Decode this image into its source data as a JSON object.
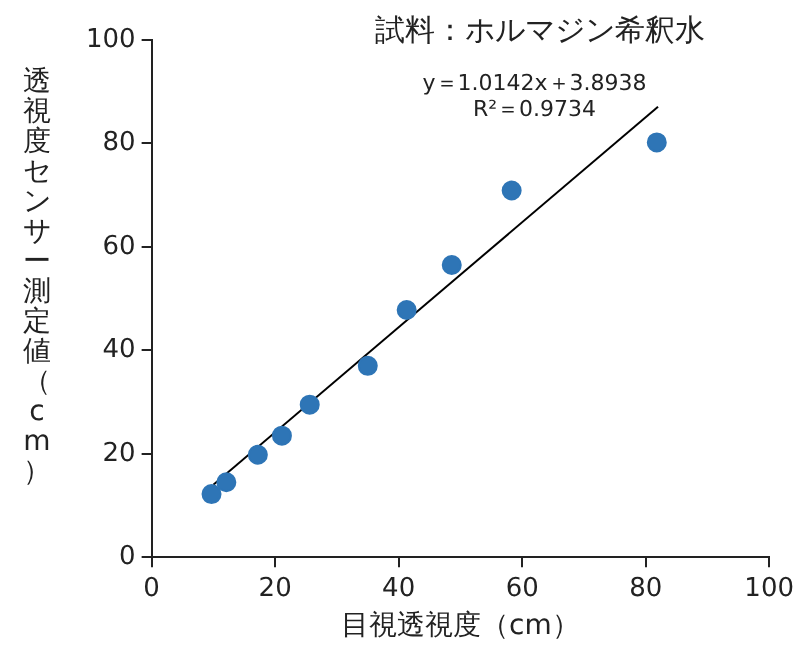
{
  "chart_data": {
    "type": "scatter",
    "title": "試料：ホルマジン希釈水",
    "xlabel": "目視透視度（cm）",
    "ylabel": "透視度センサー測定値（cm）",
    "annotations": [
      "y＝1.0142x＋3.8938",
      "R²＝0.9734"
    ],
    "xlim": [
      0,
      100
    ],
    "xticks": [
      0,
      20,
      40,
      60,
      80,
      100
    ],
    "ylim": [
      0,
      100
    ],
    "yticks": [
      0,
      20,
      40,
      60,
      80,
      100
    ],
    "grid": false,
    "legend": false,
    "series": [
      {
        "marker": "circle",
        "color": "#2e75b6",
        "x": [
          9.7,
          12.1,
          17.2,
          21.1,
          25.6,
          35.0,
          41.3,
          48.6,
          58.3,
          81.8
        ],
        "values": [
          12.2,
          14.5,
          19.8,
          23.5,
          29.5,
          37.0,
          47.8,
          56.5,
          70.9,
          80.2
        ]
      },
      {
        "type": "line",
        "color": "#000000",
        "x": [
          10,
          82
        ],
        "values": [
          14.0,
          87.1
        ]
      }
    ]
  }
}
